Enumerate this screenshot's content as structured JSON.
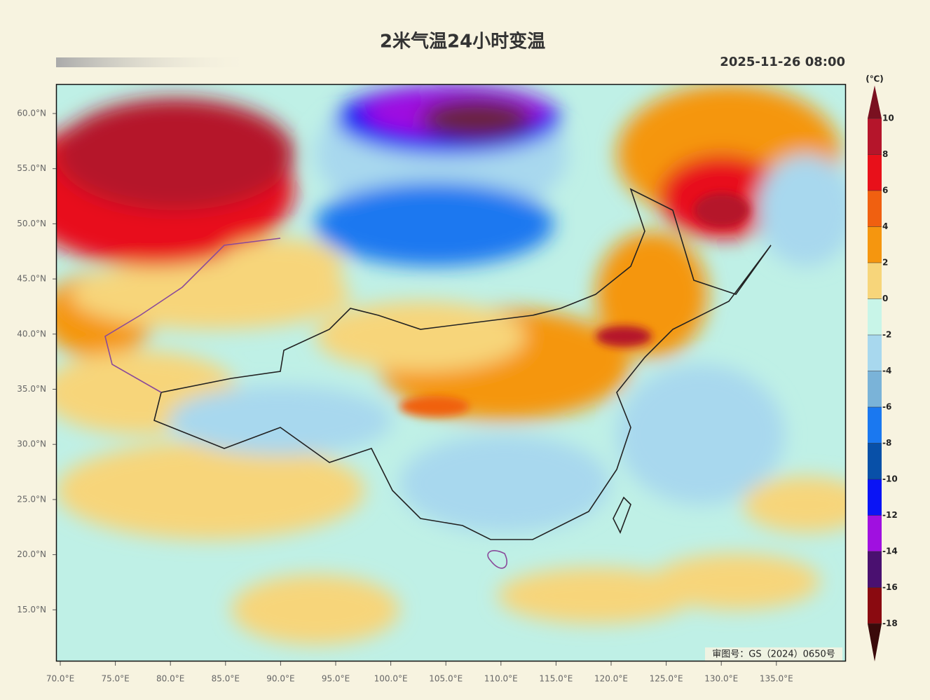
{
  "header": {
    "title": "2米气温24小时变温",
    "datetime": "2025-11-26 08:00"
  },
  "map": {
    "lat_labels": [
      "60.0°N",
      "55.0°N",
      "50.0°N",
      "45.0°N",
      "40.0°N",
      "35.0°N",
      "30.0°N",
      "25.0°N",
      "20.0°N",
      "15.0°N"
    ],
    "lon_labels": [
      "70.0°E",
      "75.0°E",
      "80.0°E",
      "85.0°E",
      "90.0°E",
      "95.0°E",
      "100.0°E",
      "105.0°E",
      "110.0°E",
      "115.0°E",
      "120.0°E",
      "125.0°E",
      "130.0°E",
      "135.0°E"
    ],
    "stamp": "审图号：GS（2024）0650号"
  },
  "colorbar": {
    "unit": "(℃)",
    "levels": [
      10,
      8,
      6,
      4,
      2,
      0,
      -2,
      -4,
      -6,
      -8,
      -10,
      -12,
      -14,
      -16,
      -18
    ],
    "colors": [
      "#b5152b",
      "#e8101a",
      "#f06010",
      "#f5960f",
      "#f7d57a",
      "#c8f5e8",
      "#a8d8ee",
      "#7ab3d8",
      "#1a78f0",
      "#0850a8",
      "#0a14f5",
      "#a010e0",
      "#4a1070",
      "#8a0a10"
    ],
    "top_color": "#7a1020",
    "bottom_color": "#3a0a0a"
  }
}
